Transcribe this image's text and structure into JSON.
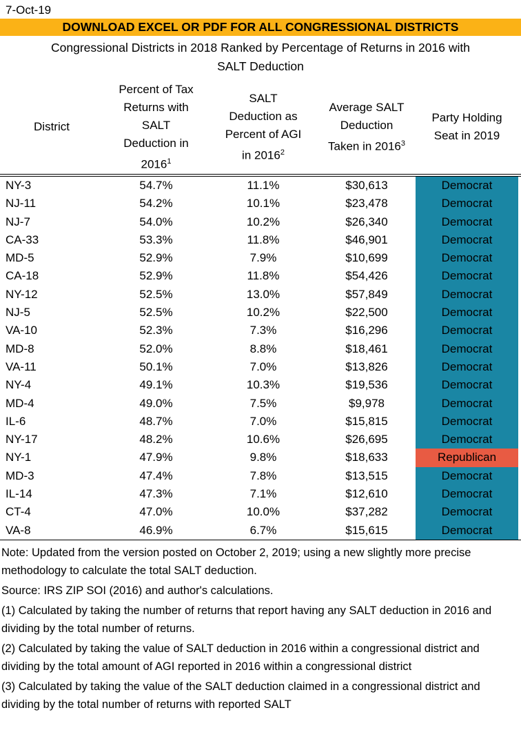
{
  "date_label": "7-Oct-19",
  "banner": {
    "text": "DOWNLOAD EXCEL OR PDF FOR ALL CONGRESSIONAL DISTRICTS"
  },
  "title": "Congressional Districts in 2018 Ranked by Percentage of Returns in 2016 with SALT Deduction",
  "colors": {
    "banner_bg": "#FBB216",
    "democrat": "#1A86A4",
    "republican": "#E85B43"
  },
  "table": {
    "headers": [
      {
        "lines": [
          "District"
        ],
        "sup": ""
      },
      {
        "lines": [
          "Percent of Tax",
          "Returns with",
          "SALT",
          "Deduction in",
          "2016"
        ],
        "sup": "1"
      },
      {
        "lines": [
          "SALT",
          "Deduction as",
          "Percent of AGI",
          "in 2016"
        ],
        "sup": "2"
      },
      {
        "lines": [
          "Average SALT",
          "Deduction",
          "Taken in 2016"
        ],
        "sup": "3"
      },
      {
        "lines": [
          "Party Holding",
          "Seat in 2019"
        ],
        "sup": ""
      }
    ],
    "rows": [
      {
        "district": "NY-3",
        "pct_returns": "54.7%",
        "pct_agi": "11.1%",
        "avg_deduction": "$30,613",
        "party": "Democrat"
      },
      {
        "district": "NJ-11",
        "pct_returns": "54.2%",
        "pct_agi": "10.1%",
        "avg_deduction": "$23,478",
        "party": "Democrat"
      },
      {
        "district": "NJ-7",
        "pct_returns": "54.0%",
        "pct_agi": "10.2%",
        "avg_deduction": "$26,340",
        "party": "Democrat"
      },
      {
        "district": "CA-33",
        "pct_returns": "53.3%",
        "pct_agi": "11.8%",
        "avg_deduction": "$46,901",
        "party": "Democrat"
      },
      {
        "district": "MD-5",
        "pct_returns": "52.9%",
        "pct_agi": "7.9%",
        "avg_deduction": "$10,699",
        "party": "Democrat"
      },
      {
        "district": "CA-18",
        "pct_returns": "52.9%",
        "pct_agi": "11.8%",
        "avg_deduction": "$54,426",
        "party": "Democrat"
      },
      {
        "district": "NY-12",
        "pct_returns": "52.5%",
        "pct_agi": "13.0%",
        "avg_deduction": "$57,849",
        "party": "Democrat"
      },
      {
        "district": "NJ-5",
        "pct_returns": "52.5%",
        "pct_agi": "10.2%",
        "avg_deduction": "$22,500",
        "party": "Democrat"
      },
      {
        "district": "VA-10",
        "pct_returns": "52.3%",
        "pct_agi": "7.3%",
        "avg_deduction": "$16,296",
        "party": "Democrat"
      },
      {
        "district": "MD-8",
        "pct_returns": "52.0%",
        "pct_agi": "8.8%",
        "avg_deduction": "$18,461",
        "party": "Democrat"
      },
      {
        "district": "VA-11",
        "pct_returns": "50.1%",
        "pct_agi": "7.0%",
        "avg_deduction": "$13,826",
        "party": "Democrat"
      },
      {
        "district": "NY-4",
        "pct_returns": "49.1%",
        "pct_agi": "10.3%",
        "avg_deduction": "$19,536",
        "party": "Democrat"
      },
      {
        "district": "MD-4",
        "pct_returns": "49.0%",
        "pct_agi": "7.5%",
        "avg_deduction": "$9,978",
        "party": "Democrat"
      },
      {
        "district": "IL-6",
        "pct_returns": "48.7%",
        "pct_agi": "7.0%",
        "avg_deduction": "$15,815",
        "party": "Democrat"
      },
      {
        "district": "NY-17",
        "pct_returns": "48.2%",
        "pct_agi": "10.6%",
        "avg_deduction": "$26,695",
        "party": "Democrat"
      },
      {
        "district": "NY-1",
        "pct_returns": "47.9%",
        "pct_agi": "9.8%",
        "avg_deduction": "$18,633",
        "party": "Republican"
      },
      {
        "district": "MD-3",
        "pct_returns": "47.4%",
        "pct_agi": "7.8%",
        "avg_deduction": "$13,515",
        "party": "Democrat"
      },
      {
        "district": "IL-14",
        "pct_returns": "47.3%",
        "pct_agi": "7.1%",
        "avg_deduction": "$12,610",
        "party": "Democrat"
      },
      {
        "district": "CT-4",
        "pct_returns": "47.0%",
        "pct_agi": "10.0%",
        "avg_deduction": "$37,282",
        "party": "Democrat"
      },
      {
        "district": "VA-8",
        "pct_returns": "46.9%",
        "pct_agi": "6.7%",
        "avg_deduction": "$15,615",
        "party": "Democrat"
      }
    ]
  },
  "notes": [
    "Note: Updated from the version posted on October 2, 2019; using a new slightly more precise methodology to calculate the total SALT deduction.",
    "Source: IRS ZIP SOI (2016) and author's calculations.",
    "(1) Calculated by taking the number of returns that report having any SALT deduction in 2016 and dividing by the total number of returns.",
    "(2) Calculated by taking the value of SALT deduction in 2016 within a congressional district and dividing by the total amount of AGI reported in 2016 within a congressional district",
    "(3) Calculated by taking the value of the SALT deduction claimed in a congressional district and dividing by the total number of returns with reported SALT"
  ]
}
